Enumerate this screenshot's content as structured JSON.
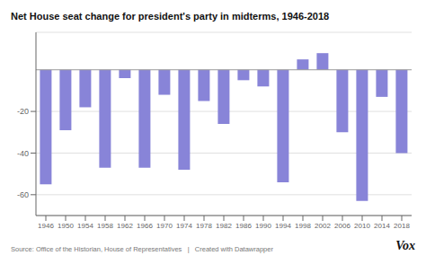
{
  "chart_data": {
    "type": "bar",
    "title": "Net House seat change for president's party in midterms, 1946-2018",
    "categories": [
      "1946",
      "1950",
      "1954",
      "1958",
      "1962",
      "1966",
      "1970",
      "1974",
      "1978",
      "1982",
      "1986",
      "1990",
      "1994",
      "1998",
      "2002",
      "2006",
      "2010",
      "2014",
      "2018"
    ],
    "values": [
      -55,
      -29,
      -18,
      -47,
      -4,
      -47,
      -12,
      -48,
      -15,
      -26,
      -5,
      -8,
      -54,
      5,
      8,
      -30,
      -63,
      -13,
      -40
    ],
    "color": "#8884d8",
    "ylim": [
      -70,
      18
    ],
    "yticks": [
      -20,
      -40,
      -60
    ],
    "grid": true,
    "annotations": [
      "Source: Office of the Historian, House of Representatives   |   Created with Datawrapper",
      "Vox"
    ]
  }
}
